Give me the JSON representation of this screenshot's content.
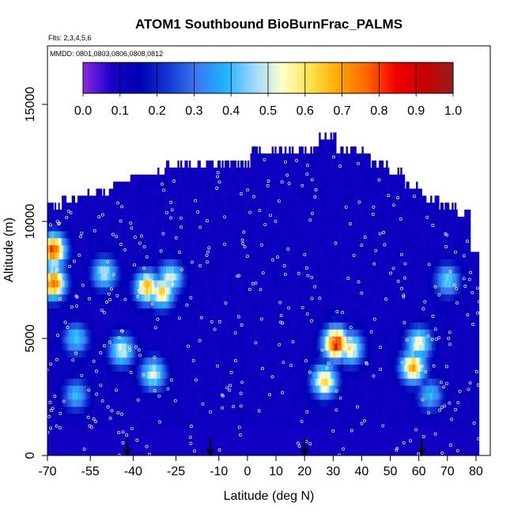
{
  "chart_data": {
    "type": "heatmap",
    "title": "ATOM1 Southbound BioBurnFrac_PALMS",
    "flights_note": "Flts: 2,3,4,5,6",
    "dates_note": "MMDD: 0801,0803,0806,0808,0812",
    "xlabel": "Latitude (deg N)",
    "ylabel": "Altitude (m)",
    "xlim": [
      -70,
      85
    ],
    "ylim": [
      0,
      17500
    ],
    "x_ticks": [
      -70,
      -55,
      -40,
      -25,
      -10,
      0,
      10,
      20,
      30,
      40,
      50,
      60,
      70,
      80
    ],
    "x_tick_labels": [
      "-70",
      "-55",
      "-40",
      "-25",
      "-10",
      "0",
      "10",
      "20",
      "30",
      "40",
      "50",
      "60",
      "70",
      "80"
    ],
    "y_ticks": [
      0,
      5000,
      10000,
      15000
    ],
    "y_tick_labels": [
      "0",
      "5000",
      "10000",
      "15000"
    ],
    "colorbar": {
      "range": [
        0,
        1
      ],
      "ticks": [
        "0.0",
        "0.1",
        "0.2",
        "0.3",
        "0.4",
        "0.5",
        "0.6",
        "0.7",
        "0.8",
        "0.9",
        "1.0"
      ],
      "colors": [
        "#8a2be2",
        "#1a00c8",
        "#0000b4",
        "#1438d2",
        "#3c78f0",
        "#1eb4ff",
        "#9cd8ff",
        "#ffffcc",
        "#ffe14b",
        "#ffa500",
        "#ff6400",
        "#f00000",
        "#c80000",
        "#961e1e"
      ]
    },
    "arrow_latitudes": [
      -42,
      -13,
      20,
      61
    ],
    "columns": [
      {
        "lat": -68,
        "ztop": 10500
      },
      {
        "lat": -62,
        "ztop": 10800
      },
      {
        "lat": -56,
        "ztop": 11000
      },
      {
        "lat": -50,
        "ztop": 11100
      },
      {
        "lat": -44,
        "ztop": 11600
      },
      {
        "lat": -38,
        "ztop": 11800
      },
      {
        "lat": -32,
        "ztop": 11900
      },
      {
        "lat": -26,
        "ztop": 12300
      },
      {
        "lat": -20,
        "ztop": 12300
      },
      {
        "lat": -14,
        "ztop": 12300
      },
      {
        "lat": -8,
        "ztop": 12300
      },
      {
        "lat": -2,
        "ztop": 12300
      },
      {
        "lat": 4,
        "ztop": 12900
      },
      {
        "lat": 10,
        "ztop": 12900
      },
      {
        "lat": 16,
        "ztop": 12900
      },
      {
        "lat": 22,
        "ztop": 12900
      },
      {
        "lat": 28,
        "ztop": 13400
      },
      {
        "lat": 34,
        "ztop": 12900
      },
      {
        "lat": 40,
        "ztop": 12900
      },
      {
        "lat": 46,
        "ztop": 12300
      },
      {
        "lat": 52,
        "ztop": 11900
      },
      {
        "lat": 58,
        "ztop": 11300
      },
      {
        "lat": 64,
        "ztop": 10800
      },
      {
        "lat": 70,
        "ztop": 10500
      },
      {
        "lat": 76,
        "ztop": 10200
      },
      {
        "lat": 80,
        "ztop": 8500
      }
    ],
    "hotspots": [
      {
        "lat": -68,
        "alt": 7400,
        "value": 0.82
      },
      {
        "lat": -68,
        "alt": 8800,
        "value": 0.85
      },
      {
        "lat": -35,
        "alt": 7200,
        "value": 0.7
      },
      {
        "lat": -30,
        "alt": 7000,
        "value": 0.66
      },
      {
        "lat": -27,
        "alt": 7600,
        "value": 0.56
      },
      {
        "lat": -50,
        "alt": 7800,
        "value": 0.52
      },
      {
        "lat": -44,
        "alt": 4500,
        "value": 0.55
      },
      {
        "lat": -33,
        "alt": 3500,
        "value": 0.55
      },
      {
        "lat": 31,
        "alt": 4800,
        "value": 0.9
      },
      {
        "lat": 27,
        "alt": 3200,
        "value": 0.68
      },
      {
        "lat": 36,
        "alt": 4600,
        "value": 0.62
      },
      {
        "lat": 58,
        "alt": 3800,
        "value": 0.72
      },
      {
        "lat": 60,
        "alt": 4800,
        "value": 0.58
      },
      {
        "lat": 70,
        "alt": 7500,
        "value": 0.46
      },
      {
        "lat": 64,
        "alt": 2600,
        "value": 0.42
      },
      {
        "lat": -60,
        "alt": 2600,
        "value": 0.42
      },
      {
        "lat": -60,
        "alt": 5000,
        "value": 0.45
      }
    ]
  }
}
